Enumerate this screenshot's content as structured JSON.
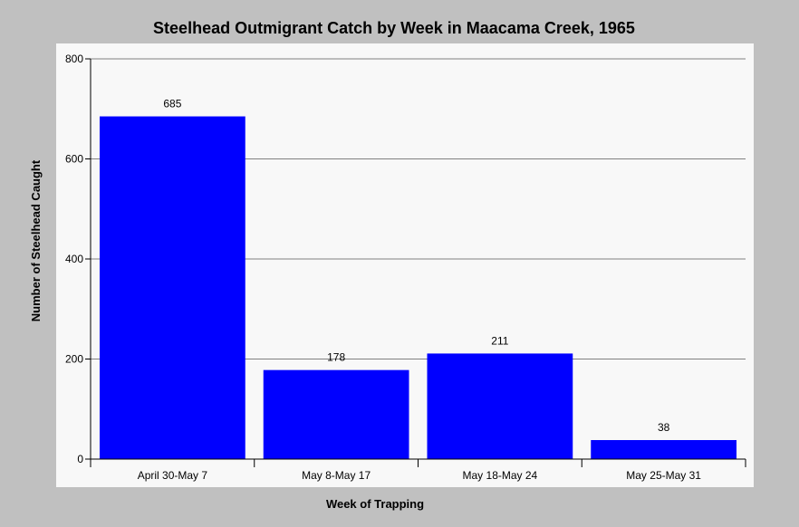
{
  "chart_data": {
    "type": "bar",
    "title": "Steelhead Outmigrant Catch by Week in Maacama Creek, 1965",
    "xlabel": "Week of Trapping",
    "ylabel": "Number of Steelhead Caught",
    "categories": [
      "April 30-May 7",
      "May 8-May 17",
      "May 18-May 24",
      "May 25-May 31"
    ],
    "values": [
      685,
      178,
      211,
      38
    ],
    "data_labels": [
      "685",
      "178",
      "211",
      "38"
    ],
    "ylim": [
      0,
      800
    ],
    "yticks": [
      0,
      200,
      400,
      600,
      800
    ],
    "ytick_labels": [
      "0",
      "200",
      "400",
      "600",
      "800"
    ],
    "grid": true,
    "legend": "none",
    "colors": {
      "bar": "#0000ff",
      "plot_background": "#f8f8f8",
      "figure_background": "#c0c0c0",
      "gridline": "#808080"
    }
  }
}
